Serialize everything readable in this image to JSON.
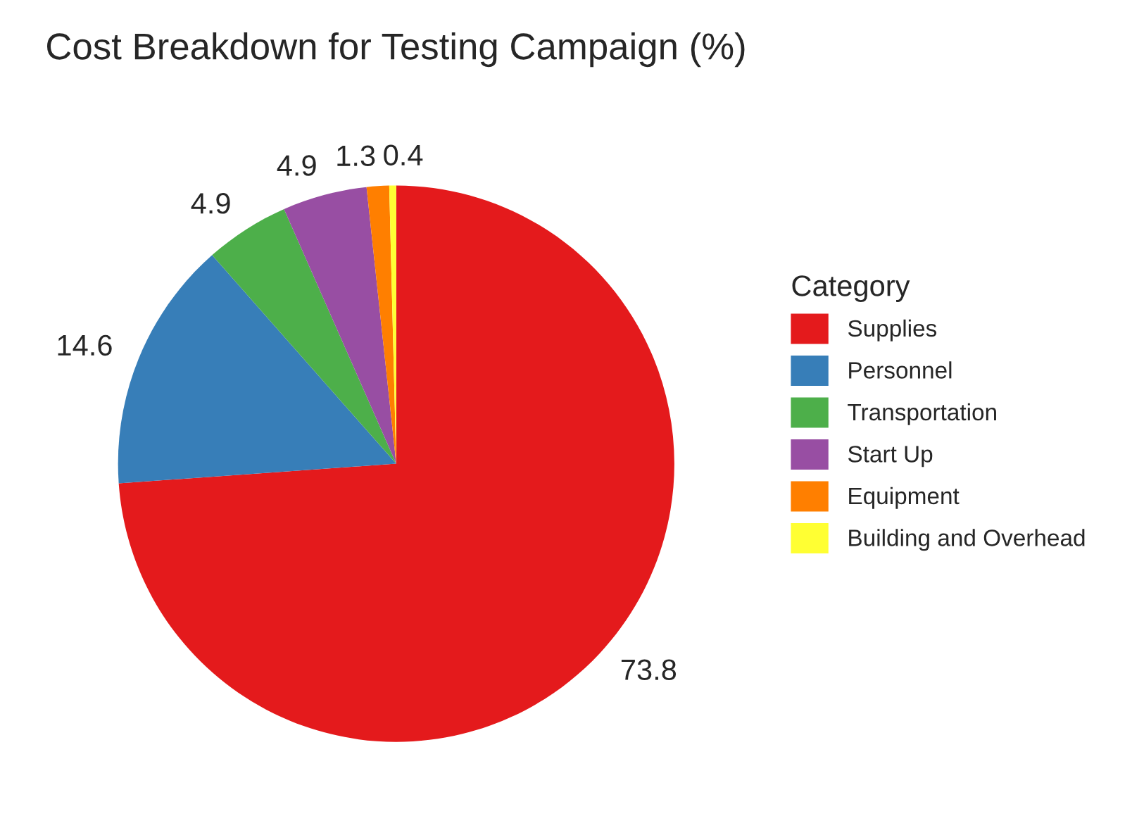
{
  "chart_data": {
    "type": "pie",
    "title": "Cost Breakdown for Testing Campaign (%)",
    "legend_title": "Category",
    "categories": [
      "Supplies",
      "Personnel",
      "Transportation",
      "Start Up",
      "Equipment",
      "Building and Overhead"
    ],
    "values": [
      73.8,
      14.6,
      4.9,
      4.9,
      1.3,
      0.4
    ],
    "colors": [
      "#e41a1c",
      "#377eb8",
      "#4daf4a",
      "#984ea3",
      "#ff7f00",
      "#ffff33"
    ],
    "data_labels": true,
    "legend": "right"
  }
}
